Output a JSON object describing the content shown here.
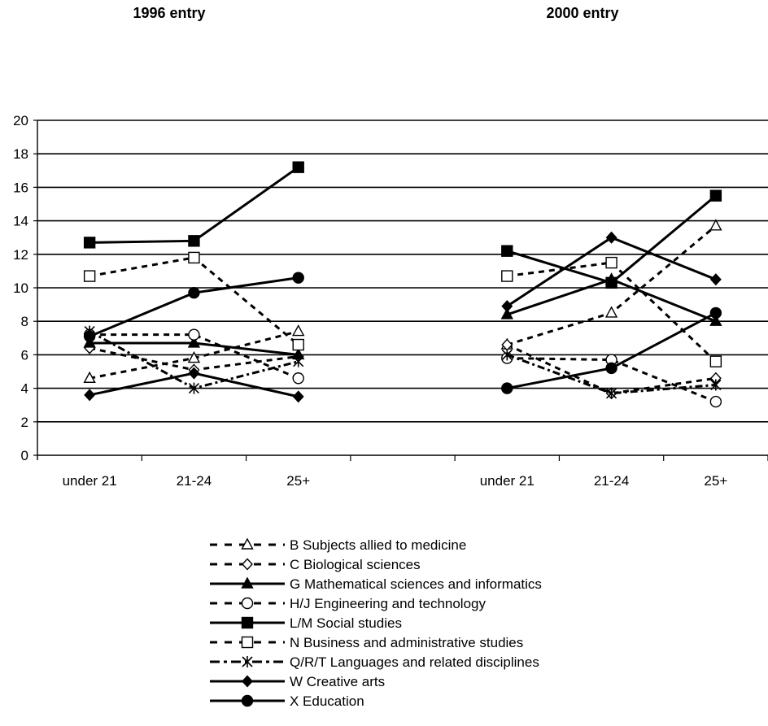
{
  "chart_data": {
    "type": "line",
    "panel_titles": [
      "1996 entry",
      "2000 entry"
    ],
    "groups": [
      {
        "title": "1996 entry",
        "categories": [
          "under 21",
          "21-24",
          "25+"
        ]
      },
      {
        "title": "2000 entry",
        "categories": [
          "under 21",
          "21-24",
          "25+"
        ]
      }
    ],
    "ylim": [
      0,
      20
    ],
    "yticks": [
      "0",
      "2",
      "4",
      "6",
      "8",
      "10",
      "12",
      "14",
      "16",
      "18",
      "20"
    ],
    "ytick_values": [
      0,
      2,
      4,
      6,
      8,
      10,
      12,
      14,
      16,
      18,
      20
    ],
    "grid": true,
    "legend_position": "bottom",
    "series": [
      {
        "name": "B Subjects allied to medicine",
        "marker": "triangle-open",
        "dash": "dashed",
        "values_1996": [
          4.6,
          5.8,
          7.4
        ],
        "values_2000": [
          6.6,
          8.5,
          13.7
        ]
      },
      {
        "name": "C Biological sciences",
        "marker": "diamond-open",
        "dash": "dashed",
        "values_1996": [
          6.4,
          5.1,
          5.9
        ],
        "values_2000": [
          6.6,
          3.7,
          4.6
        ]
      },
      {
        "name": "G Mathematical sciences and informatics",
        "marker": "triangle-filled",
        "dash": "solid",
        "values_1996": [
          6.7,
          6.7,
          6.0
        ],
        "values_2000": [
          8.4,
          10.5,
          8.0
        ]
      },
      {
        "name": "H/J Engineering and technology",
        "marker": "circle-open",
        "dash": "dashed",
        "values_1996": [
          7.2,
          7.2,
          4.6
        ],
        "values_2000": [
          5.8,
          5.7,
          3.2
        ]
      },
      {
        "name": "L/M Social studies",
        "marker": "square-filled",
        "dash": "solid",
        "values_1996": [
          12.7,
          12.8,
          17.2
        ],
        "values_2000": [
          12.2,
          10.3,
          15.5
        ]
      },
      {
        "name": "N Business and administrative studies",
        "marker": "square-open",
        "dash": "dashed",
        "values_1996": [
          10.7,
          11.8,
          6.6
        ],
        "values_2000": [
          10.7,
          11.5,
          5.6
        ]
      },
      {
        "name": "Q/R/T Languages and related disciplines",
        "marker": "star",
        "dash": "dashdot",
        "values_1996": [
          7.4,
          4.0,
          5.6
        ],
        "values_2000": [
          6.0,
          3.7,
          4.2
        ]
      },
      {
        "name": "W Creative arts",
        "marker": "diamond-filled",
        "dash": "solid",
        "values_1996": [
          3.6,
          4.9,
          3.5
        ],
        "values_2000": [
          8.9,
          13.0,
          10.5
        ]
      },
      {
        "name": "X Education",
        "marker": "circle-filled",
        "dash": "solid",
        "values_1996": [
          7.1,
          9.7,
          10.6
        ],
        "values_2000": [
          4.0,
          5.2,
          8.5
        ]
      }
    ]
  }
}
